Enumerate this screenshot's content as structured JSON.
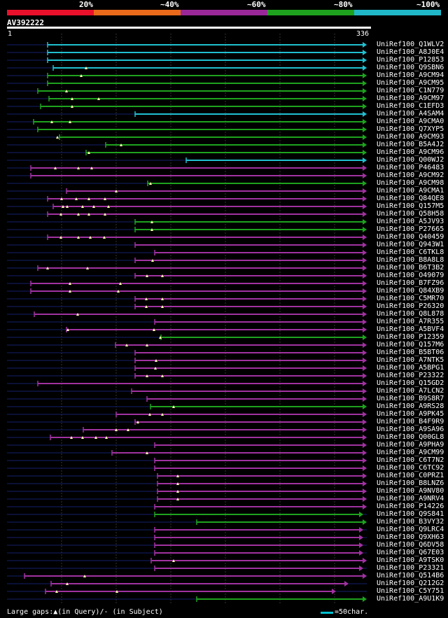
{
  "query_id": "AV392222",
  "ruler": {
    "start": "1",
    "end": "336"
  },
  "identity_scale": [
    {
      "label": "20%",
      "color": "#e8102a"
    },
    {
      "label": "~40%",
      "color": "#e86a1a"
    },
    {
      "label": "~60%",
      "color": "#9a2898"
    },
    {
      "label": "~80%",
      "color": "#1ea21e"
    },
    {
      "label": "~100%",
      "color": "#20b8c8"
    }
  ],
  "colors": {
    "100": "#20c0d0",
    "80": "#1ea21e",
    "60": "#a032a0",
    "background": "#000000"
  },
  "hits": [
    {
      "name": "UniRef100_Q1WLV2",
      "s": 68,
      "e": 524,
      "c": "100",
      "m": []
    },
    {
      "name": "UniRef100_A8J0E4",
      "s": 68,
      "e": 524,
      "c": "100",
      "m": []
    },
    {
      "name": "UniRef100_P12853",
      "s": 68,
      "e": 524,
      "c": "100",
      "m": []
    },
    {
      "name": "UniRef100_Q9SBN6",
      "s": 76,
      "e": 524,
      "c": "100",
      "m": [
        123
      ]
    },
    {
      "name": "UniRef100_A9CM94",
      "s": 68,
      "e": 524,
      "c": "80",
      "m": [
        116
      ]
    },
    {
      "name": "UniRef100_A9CM95",
      "s": 68,
      "e": 524,
      "c": "80",
      "m": []
    },
    {
      "name": "UniRef100_C1N779",
      "s": 54,
      "e": 524,
      "c": "80",
      "m": [
        95
      ]
    },
    {
      "name": "UniRef100_A9CM97",
      "s": 70,
      "e": 524,
      "c": "80",
      "m": [
        103,
        141
      ]
    },
    {
      "name": "UniRef100_C1EFD3",
      "s": 58,
      "e": 524,
      "c": "80",
      "m": [
        103
      ]
    },
    {
      "name": "UniRef100_A4SAM4",
      "s": 193,
      "e": 524,
      "c": "100",
      "m": []
    },
    {
      "name": "UniRef100_A9CMA0",
      "s": 48,
      "e": 524,
      "c": "80",
      "m": [
        74,
        100
      ]
    },
    {
      "name": "UniRef100_Q7XYP5",
      "s": 54,
      "e": 524,
      "c": "80",
      "m": []
    },
    {
      "name": "UniRef100_A9CM93",
      "s": 85,
      "e": 524,
      "c": "80",
      "m": [
        82
      ]
    },
    {
      "name": "UniRef100_B5A4J2",
      "s": 151,
      "e": 524,
      "c": "80",
      "m": [
        173
      ]
    },
    {
      "name": "UniRef100_A9CM96",
      "s": 123,
      "e": 524,
      "c": "80",
      "m": [
        127
      ]
    },
    {
      "name": "UniRef100_Q00WJ2",
      "s": 266,
      "e": 524,
      "c": "100",
      "m": []
    },
    {
      "name": "UniRef100_P46483",
      "s": 44,
      "e": 524,
      "c": "60",
      "m": [
        79,
        112,
        131
      ]
    },
    {
      "name": "UniRef100_A9CM92",
      "s": 44,
      "e": 524,
      "c": "60",
      "m": []
    },
    {
      "name": "UniRef100_A9CM98",
      "s": 211,
      "e": 524,
      "c": "80",
      "m": [
        215
      ]
    },
    {
      "name": "UniRef100_A9CMA1",
      "s": 95,
      "e": 524,
      "c": "60",
      "m": [
        166
      ]
    },
    {
      "name": "UniRef100_Q84QE8",
      "s": 68,
      "e": 524,
      "c": "60",
      "m": [
        88,
        109,
        127,
        150
      ]
    },
    {
      "name": "UniRef100_Q157M5",
      "s": 76,
      "e": 524,
      "c": "60",
      "m": [
        90,
        96,
        118,
        134,
        155
      ]
    },
    {
      "name": "UniRef100_Q58H58",
      "s": 68,
      "e": 524,
      "c": "60",
      "m": [
        87,
        112,
        127,
        150
      ]
    },
    {
      "name": "UniRef100_A5JV93",
      "s": 193,
      "e": 524,
      "c": "80",
      "m": [
        217
      ]
    },
    {
      "name": "UniRef100_P27665",
      "s": 193,
      "e": 524,
      "c": "80",
      "m": [
        217
      ]
    },
    {
      "name": "UniRef100_Q40459",
      "s": 68,
      "e": 524,
      "c": "60",
      "m": [
        87,
        112,
        129,
        149
      ]
    },
    {
      "name": "UniRef100_Q943W1",
      "s": 193,
      "e": 524,
      "c": "60",
      "m": []
    },
    {
      "name": "UniRef100_C6TKL8",
      "s": 221,
      "e": 524,
      "c": "60",
      "m": []
    },
    {
      "name": "UniRef100_B8A8L8",
      "s": 193,
      "e": 524,
      "c": "60",
      "m": [
        218
      ]
    },
    {
      "name": "UniRef100_B6T3B2",
      "s": 54,
      "e": 524,
      "c": "60",
      "m": [
        68,
        125
      ]
    },
    {
      "name": "UniRef100_O49079",
      "s": 193,
      "e": 524,
      "c": "60",
      "m": [
        210,
        232
      ]
    },
    {
      "name": "UniRef100_B7FZ96",
      "s": 44,
      "e": 524,
      "c": "60",
      "m": [
        100,
        172
      ]
    },
    {
      "name": "UniRef100_Q84XB9",
      "s": 44,
      "e": 524,
      "c": "60",
      "m": [
        100,
        169
      ]
    },
    {
      "name": "UniRef100_C5MR70",
      "s": 193,
      "e": 524,
      "c": "60",
      "m": [
        209,
        232
      ]
    },
    {
      "name": "UniRef100_P26320",
      "s": 193,
      "e": 524,
      "c": "60",
      "m": [
        209,
        232
      ]
    },
    {
      "name": "UniRef100_Q8L878",
      "s": 49,
      "e": 524,
      "c": "60",
      "m": [
        111
      ]
    },
    {
      "name": "UniRef100_A7R355",
      "s": 221,
      "e": 524,
      "c": "60",
      "m": []
    },
    {
      "name": "UniRef100_A5BVF4",
      "s": 95,
      "e": 524,
      "c": "60",
      "m": [
        97,
        220
      ]
    },
    {
      "name": "UniRef100_P12359",
      "s": 230,
      "e": 524,
      "c": "80",
      "m": [
        229
      ]
    },
    {
      "name": "UniRef100_Q157M6",
      "s": 165,
      "e": 524,
      "c": "60",
      "m": [
        181,
        210
      ]
    },
    {
      "name": "UniRef100_B5BT06",
      "s": 193,
      "e": 524,
      "c": "60",
      "m": []
    },
    {
      "name": "UniRef100_A7NTK5",
      "s": 193,
      "e": 524,
      "c": "60",
      "m": [
        223
      ]
    },
    {
      "name": "UniRef100_A5BPG1",
      "s": 193,
      "e": 524,
      "c": "60",
      "m": [
        222
      ]
    },
    {
      "name": "UniRef100_P23322",
      "s": 193,
      "e": 524,
      "c": "60",
      "m": [
        210,
        232
      ]
    },
    {
      "name": "UniRef100_Q15GD2",
      "s": 54,
      "e": 524,
      "c": "60",
      "m": []
    },
    {
      "name": "UniRef100_A7LCN2",
      "s": 188,
      "e": 524,
      "c": "60",
      "m": []
    },
    {
      "name": "UniRef100_B9S8R7",
      "s": 210,
      "e": 524,
      "c": "60",
      "m": []
    },
    {
      "name": "UniRef100_A9RS28",
      "s": 215,
      "e": 524,
      "c": "80",
      "m": [
        248
      ]
    },
    {
      "name": "UniRef100_A9PK45",
      "s": 166,
      "e": 524,
      "c": "60",
      "m": [
        214,
        232
      ]
    },
    {
      "name": "UniRef100_B4F9R9",
      "s": 193,
      "e": 524,
      "c": "60",
      "m": [
        197
      ]
    },
    {
      "name": "UniRef100_A9SA96",
      "s": 119,
      "e": 524,
      "c": "60",
      "m": [
        166,
        183
      ]
    },
    {
      "name": "UniRef100_Q00GL8",
      "s": 72,
      "e": 524,
      "c": "60",
      "m": [
        102,
        118,
        137,
        152
      ]
    },
    {
      "name": "UniRef100_A9PHA9",
      "s": 221,
      "e": 524,
      "c": "60",
      "m": []
    },
    {
      "name": "UniRef100_A9CM99",
      "s": 160,
      "e": 524,
      "c": "60",
      "m": [
        210
      ]
    },
    {
      "name": "UniRef100_C6T7N2",
      "s": 221,
      "e": 524,
      "c": "60",
      "m": []
    },
    {
      "name": "UniRef100_C6TC92",
      "s": 221,
      "e": 524,
      "c": "60",
      "m": []
    },
    {
      "name": "UniRef100_C0PRZ1",
      "s": 225,
      "e": 524,
      "c": "60",
      "m": [
        254
      ]
    },
    {
      "name": "UniRef100_B8LNZ6",
      "s": 225,
      "e": 524,
      "c": "60",
      "m": [
        254
      ]
    },
    {
      "name": "UniRef100_A9NV80",
      "s": 225,
      "e": 524,
      "c": "60",
      "m": [
        254
      ]
    },
    {
      "name": "UniRef100_A9NRV4",
      "s": 225,
      "e": 524,
      "c": "60",
      "m": [
        254
      ]
    },
    {
      "name": "UniRef100_P14226",
      "s": 221,
      "e": 524,
      "c": "60",
      "m": []
    },
    {
      "name": "UniRef100_Q9S841",
      "s": 221,
      "e": 519,
      "c": "80",
      "m": []
    },
    {
      "name": "UniRef100_B3VY32",
      "s": 281,
      "e": 524,
      "c": "80",
      "m": []
    },
    {
      "name": "UniRef100_Q9LRC4",
      "s": 221,
      "e": 519,
      "c": "60",
      "m": []
    },
    {
      "name": "UniRef100_Q9XH63",
      "s": 221,
      "e": 519,
      "c": "60",
      "m": []
    },
    {
      "name": "UniRef100_Q6DV58",
      "s": 221,
      "e": 519,
      "c": "60",
      "m": []
    },
    {
      "name": "UniRef100_Q67E03",
      "s": 221,
      "e": 519,
      "c": "60",
      "m": []
    },
    {
      "name": "UniRef100_A9TSK0",
      "s": 216,
      "e": 524,
      "c": "60",
      "m": [
        248
      ]
    },
    {
      "name": "UniRef100_P23321",
      "s": 221,
      "e": 519,
      "c": "60",
      "m": []
    },
    {
      "name": "UniRef100_Q514B6",
      "s": 35,
      "e": 524,
      "c": "60",
      "m": [
        121
      ]
    },
    {
      "name": "UniRef100_Q212G2",
      "s": 73,
      "e": 498,
      "c": "60",
      "m": [
        96
      ]
    },
    {
      "name": "UniRef100_C5Y751",
      "s": 65,
      "e": 480,
      "c": "60",
      "m": [
        81,
        167
      ]
    },
    {
      "name": "UniRef100_A9U1K9",
      "s": 281,
      "e": 524,
      "c": "80",
      "m": []
    }
  ],
  "legend": {
    "gaps_text": "Large gaps:▲(in Query)/- (in Subject)",
    "scale_text": "=50char."
  }
}
